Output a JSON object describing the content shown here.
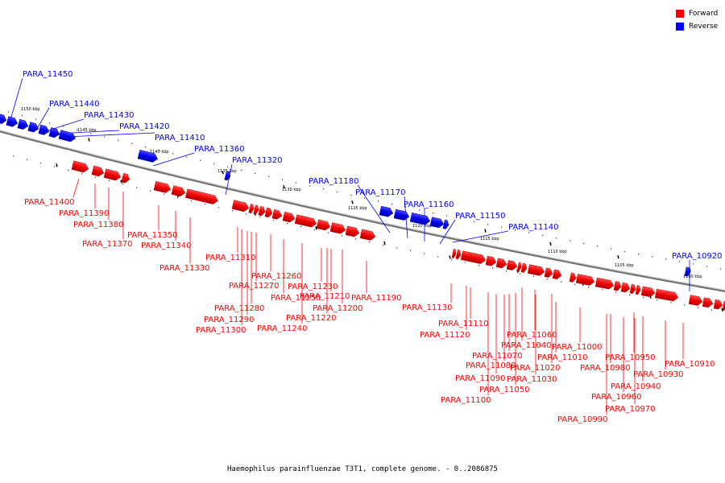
{
  "title": "Haemophilus parainfluenzae T3T1, complete genome. - 0..2086875",
  "legend": [
    {
      "label": "Forward",
      "color": "#ff0000"
    },
    {
      "label": "Reverse",
      "color": "#0000ff"
    }
  ],
  "colors": {
    "forward": "#ff0000",
    "reverse": "#0000ff",
    "backbone": "#808080"
  },
  "ticks": [
    "1150 kbp",
    "1145 kbp",
    "1140 kbp",
    "1135 kbp",
    "1130 kbp",
    "1125 kbp",
    "1120 kbp",
    "1115 kbp",
    "1110 kbp",
    "1105 kbp",
    "1100 kbp"
  ],
  "reverse_labels": [
    "PARA_11450",
    "PARA_11440",
    "PARA_11430",
    "PARA_11420",
    "PARA_11410",
    "PARA_11360",
    "PARA_11320",
    "PARA_11180",
    "PARA_11170",
    "PARA_11160",
    "PARA_11150",
    "PARA_11140",
    "PARA_10920"
  ],
  "forward_labels": [
    "PARA_11400",
    "PARA_11390",
    "PARA_11380",
    "PARA_11370",
    "PARA_11350",
    "PARA_11340",
    "PARA_11330",
    "PARA_11310",
    "PARA_11260",
    "PARA_11270",
    "PARA_11250",
    "PARA_11280",
    "PARA_11290",
    "PARA_11300",
    "PARA_11240",
    "PARA_11230",
    "PARA_11210",
    "PARA_11200",
    "PARA_11220",
    "PARA_11190",
    "PARA_11130",
    "PARA_11110",
    "PARA_11120",
    "PARA_11060",
    "PARA_11040",
    "PARA_11070",
    "PARA_11080",
    "PARA_11090",
    "PARA_11020",
    "PARA_11030",
    "PARA_11050",
    "PARA_11100",
    "PARA_11010",
    "PARA_11000",
    "PARA_10950",
    "PARA_10980",
    "PARA_10930",
    "PARA_10940",
    "PARA_10960",
    "PARA_10970",
    "PARA_10990",
    "PARA_10910"
  ]
}
